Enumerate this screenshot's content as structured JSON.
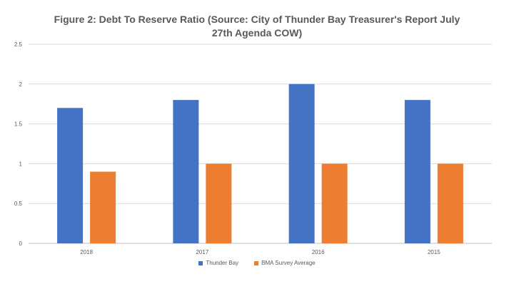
{
  "chart_data": {
    "type": "bar",
    "title": "Figure 2: Debt To Reserve Ratio (Source: City of Thunder Bay Treasurer's Report July 27th Agenda COW)",
    "categories": [
      "2018",
      "2017",
      "2016",
      "2015"
    ],
    "series": [
      {
        "name": "Thunder Bay",
        "values": [
          1.7,
          1.8,
          2.0,
          1.8
        ],
        "color": "#4472C4"
      },
      {
        "name": "BMA Survey Average",
        "values": [
          0.9,
          1.0,
          1.0,
          1.0
        ],
        "color": "#ED7D31"
      }
    ],
    "ylim": [
      0,
      2.5
    ],
    "yticks": [
      "0",
      "0.5",
      "1",
      "1.5",
      "2",
      "2.5"
    ],
    "grid": true,
    "legend": "bottom"
  }
}
